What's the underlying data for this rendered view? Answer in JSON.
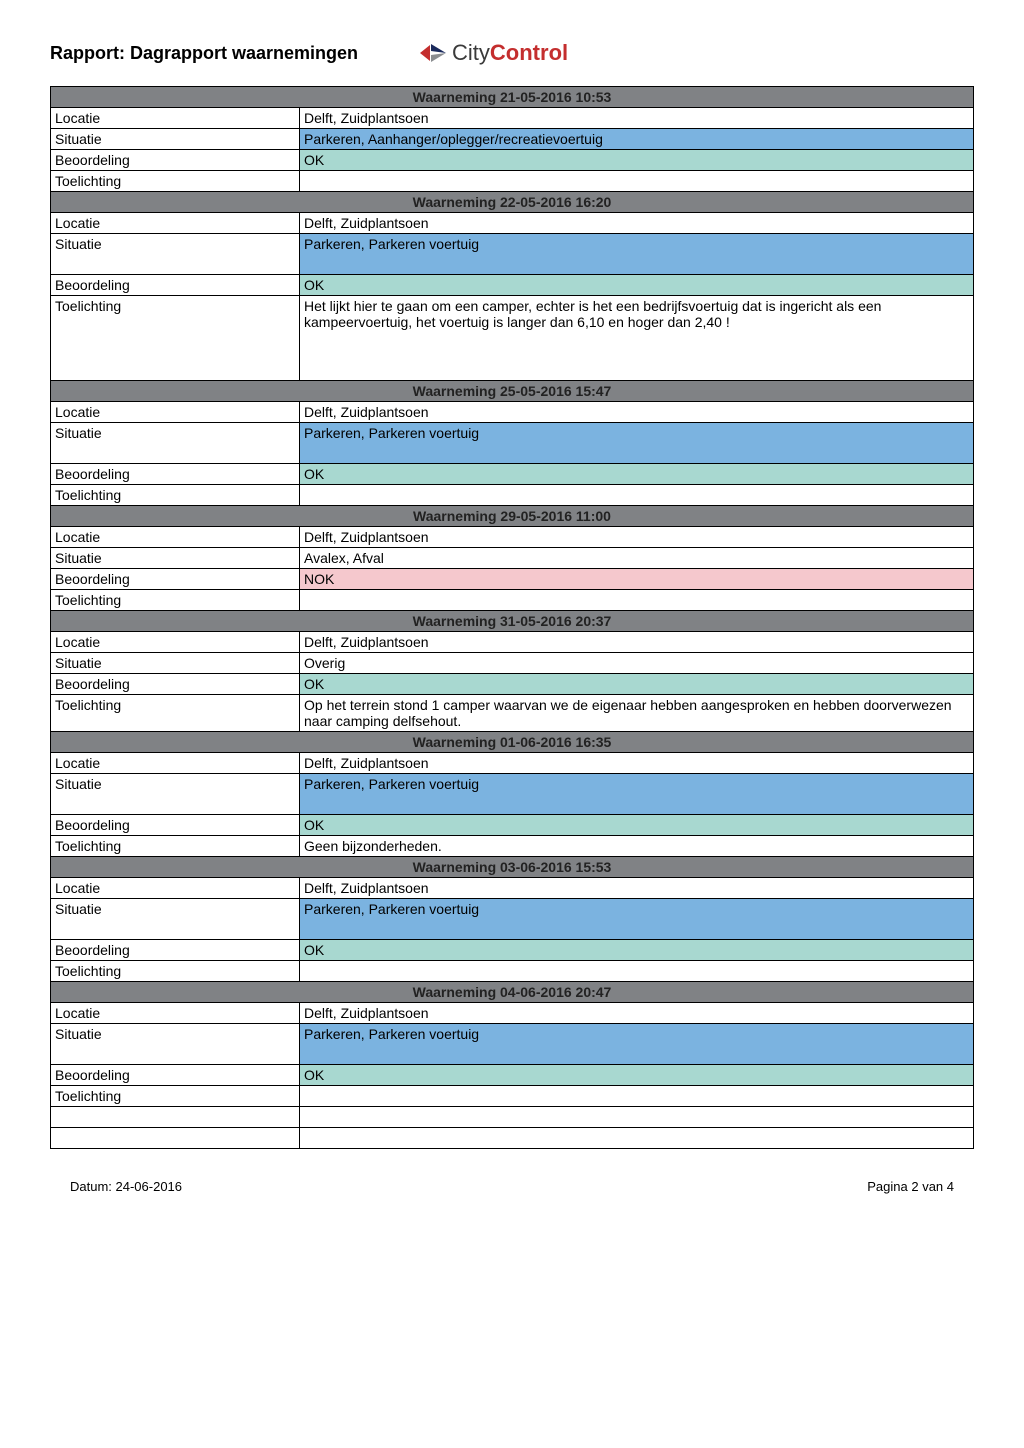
{
  "title": "Rapport: Dagrapport waarnemingen",
  "logo": {
    "city": "City",
    "control": "Control"
  },
  "colors": {
    "header_bg": "#808285",
    "blue": "#7bb3e0",
    "teal": "#a8d8d0",
    "pink": "#f5c8cd",
    "logo_red": "#c42e2e",
    "logo_grey": "#3a3a3a",
    "navy": "#1a2a5c"
  },
  "labels": {
    "locatie": "Locatie",
    "situatie": "Situatie",
    "beoordeling": "Beoordeling",
    "toelichting": "Toelichting"
  },
  "observations": [
    {
      "header": "Waarneming 21-05-2016 10:53",
      "locatie": "Delft, Zuidplantsoen",
      "situatie": "Parkeren, Aanhanger/oplegger/recreatievoertuig",
      "situatie_bg": "blue",
      "situatie_tall": false,
      "beoordeling": "OK",
      "beoordeling_bg": "teal",
      "toelichting": ""
    },
    {
      "header": "Waarneming 22-05-2016 16:20",
      "locatie": "Delft, Zuidplantsoen",
      "situatie": "Parkeren, Parkeren voertuig",
      "situatie_bg": "blue",
      "situatie_tall": true,
      "beoordeling": "OK",
      "beoordeling_bg": "teal",
      "toelichting": "Het lijkt hier te gaan om een camper, echter is het een bedrijfsvoertuig dat is ingericht als een kampeervoertuig, het voertuig is langer dan 6,10 en hoger dan 2,40 !",
      "toelichting_tall": true
    },
    {
      "header": "Waarneming 25-05-2016 15:47",
      "locatie": "Delft, Zuidplantsoen",
      "situatie": "Parkeren, Parkeren voertuig",
      "situatie_bg": "blue",
      "situatie_tall": true,
      "beoordeling": "OK",
      "beoordeling_bg": "teal",
      "toelichting": ""
    },
    {
      "header": "Waarneming 29-05-2016 11:00",
      "locatie": "Delft, Zuidplantsoen",
      "situatie": "Avalex, Afval",
      "situatie_bg": "white",
      "situatie_tall": false,
      "beoordeling": "NOK",
      "beoordeling_bg": "pink",
      "toelichting": ""
    },
    {
      "header": "Waarneming 31-05-2016 20:37",
      "locatie": "Delft, Zuidplantsoen",
      "situatie": "Overig",
      "situatie_bg": "white",
      "situatie_tall": false,
      "beoordeling": "OK",
      "beoordeling_bg": "teal",
      "toelichting": "Op het terrein stond 1 camper waarvan we de eigenaar hebben aangesproken en hebben doorverwezen naar camping delfsehout."
    },
    {
      "header": "Waarneming 01-06-2016 16:35",
      "locatie": "Delft, Zuidplantsoen",
      "situatie": "Parkeren, Parkeren voertuig",
      "situatie_bg": "blue",
      "situatie_tall": true,
      "beoordeling": "OK",
      "beoordeling_bg": "teal",
      "toelichting": "Geen bijzonderheden."
    },
    {
      "header": "Waarneming 03-06-2016 15:53",
      "locatie": "Delft, Zuidplantsoen",
      "situatie": "Parkeren, Parkeren voertuig",
      "situatie_bg": "blue",
      "situatie_tall": true,
      "beoordeling": "OK",
      "beoordeling_bg": "teal",
      "toelichting": ""
    },
    {
      "header": "Waarneming 04-06-2016 20:47",
      "locatie": "Delft, Zuidplantsoen",
      "situatie": "Parkeren, Parkeren voertuig",
      "situatie_bg": "blue",
      "situatie_tall": true,
      "beoordeling": "OK",
      "beoordeling_bg": "teal",
      "toelichting": "",
      "extra_blank_rows": 2
    }
  ],
  "footer": {
    "date": "Datum: 24-06-2016",
    "page": "Pagina 2 van 4"
  }
}
